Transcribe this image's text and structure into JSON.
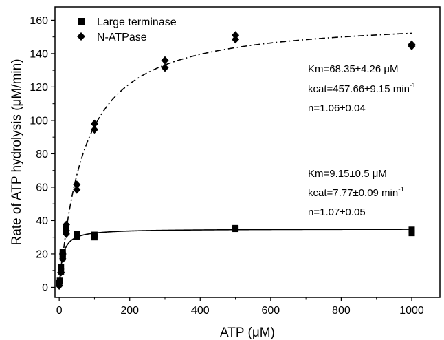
{
  "chart_data": {
    "type": "scatter",
    "title": "",
    "xlabel": "ATP (μM)",
    "ylabel": "Rate of ATP hydrolysis (μM/min)",
    "xlim": [
      -12,
      1080
    ],
    "ylim": [
      -6,
      168
    ],
    "x_ticks": [
      0,
      200,
      400,
      600,
      800,
      1000
    ],
    "y_ticks": [
      0,
      20,
      40,
      60,
      80,
      100,
      120,
      140,
      160
    ],
    "grid": false,
    "legend_position": "top-left",
    "series": [
      {
        "name": "Large terminase",
        "marker": "square",
        "color": "#000000",
        "fit_line": "solid",
        "fit": {
          "vmax": 35,
          "km": 9.15,
          "n": 1.07
        },
        "points": [
          [
            0,
            2.5
          ],
          [
            2,
            4
          ],
          [
            5,
            9.5
          ],
          [
            5,
            12
          ],
          [
            10,
            18
          ],
          [
            10,
            19.5
          ],
          [
            10,
            21
          ],
          [
            20,
            33
          ],
          [
            20,
            35
          ],
          [
            50,
            30.5
          ],
          [
            50,
            32
          ],
          [
            100,
            30
          ],
          [
            100,
            31.5
          ],
          [
            500,
            35
          ],
          [
            500,
            35.5
          ],
          [
            1000,
            32.5
          ],
          [
            1000,
            34.5
          ]
        ]
      },
      {
        "name": "N-ATPase",
        "marker": "diamond",
        "color": "#000000",
        "fit_line": "dash-dot",
        "fit": {
          "vmax": 161,
          "km": 68.35,
          "n": 1.06
        },
        "points": [
          [
            0,
            1
          ],
          [
            5,
            9
          ],
          [
            10,
            17
          ],
          [
            10,
            20
          ],
          [
            20,
            32
          ],
          [
            20,
            34
          ],
          [
            20,
            37.5
          ],
          [
            50,
            58.5
          ],
          [
            50,
            61.5
          ],
          [
            100,
            94.5
          ],
          [
            100,
            98
          ],
          [
            300,
            131.5
          ],
          [
            300,
            136
          ],
          [
            500,
            148.5
          ],
          [
            500,
            151
          ],
          [
            1000,
            144.5
          ],
          [
            1000,
            145.5
          ]
        ]
      }
    ],
    "annotations": [
      {
        "group": "natpase",
        "lines": [
          "Km=68.35±4.26 μM",
          "kcat=457.66±9.15 min",
          "n=1.06±0.04"
        ],
        "superscript": "-1"
      },
      {
        "group": "terminase",
        "lines": [
          "Km=9.15±0.5 μM",
          "kcat=7.77±0.09 min",
          "n=1.07±0.05"
        ],
        "superscript": "-1"
      }
    ]
  }
}
